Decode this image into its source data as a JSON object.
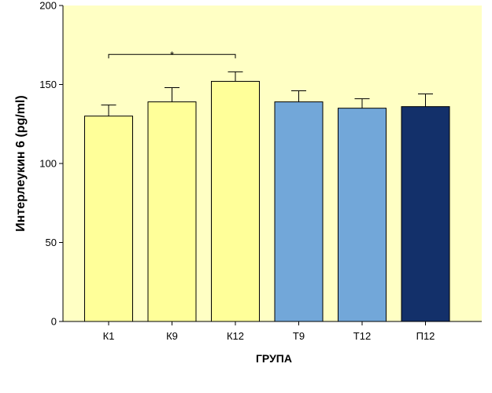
{
  "chart_data": {
    "type": "bar",
    "title": "",
    "xlabel": "ГРУПА",
    "ylabel": "Интерлеукин 6 (pg/ml)",
    "categories": [
      "К1",
      "К9",
      "К12",
      "Т9",
      "Т12",
      "П12"
    ],
    "values": [
      130,
      139,
      152,
      139,
      135,
      136
    ],
    "error_upper": [
      137,
      148,
      158,
      146,
      141,
      144
    ],
    "bar_colors": [
      "#ffff99",
      "#ffff99",
      "#ffff99",
      "#72a7d9",
      "#72a7d9",
      "#13306a"
    ],
    "ylim": [
      0,
      200
    ],
    "yticks": [
      0,
      50,
      100,
      150,
      200
    ],
    "grid": false,
    "legend": "none",
    "significance": {
      "from_category": "К1",
      "to_category": "К12",
      "label": "*",
      "y": 169
    }
  }
}
